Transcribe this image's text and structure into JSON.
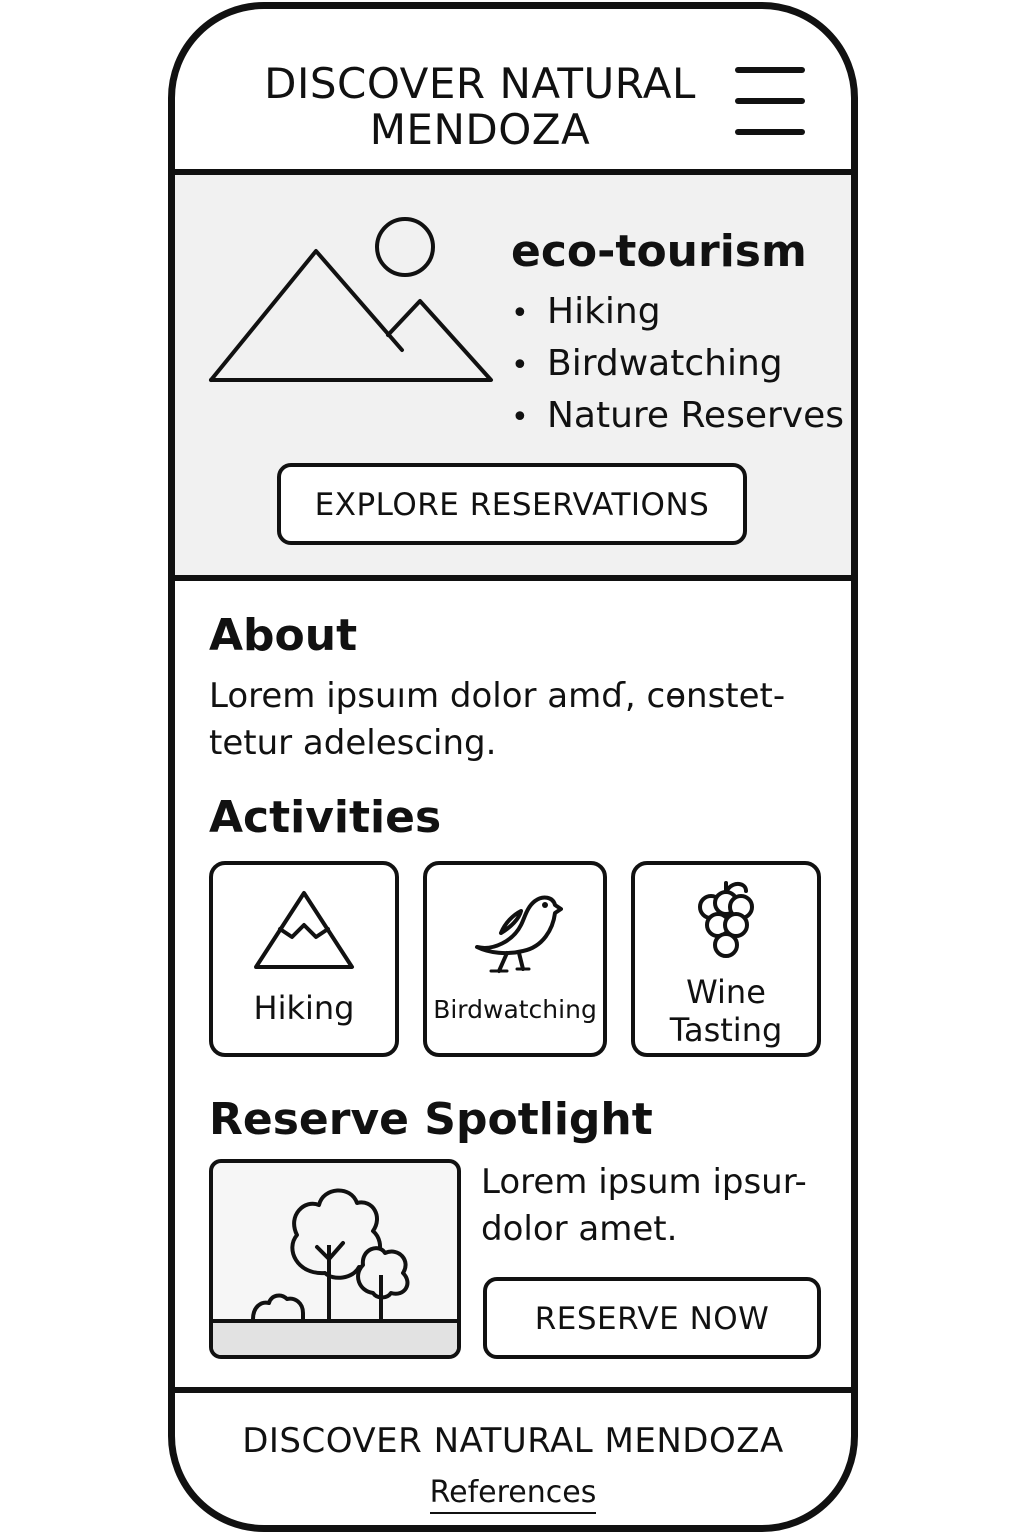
{
  "header": {
    "title": "DISCOVER NATURAL MENDOZA",
    "menu_icon": "hamburger-menu-icon"
  },
  "hero": {
    "illustration_icon": "mountain-sun-icon",
    "heading": "eco-tourism",
    "items": [
      {
        "bullet": "•",
        "label": "Hiking"
      },
      {
        "bullet": "•",
        "label": "Birdwatching"
      },
      {
        "bullet": "•",
        "label": "Nature Reserves"
      }
    ],
    "cta_label": "EXPLORE RESERVATIONS"
  },
  "about": {
    "title": "About",
    "text": "Lorem ipsuım dolor amɗ, cɵnstet-tetur adelescing."
  },
  "activities": {
    "title": "Activities",
    "cards": [
      {
        "icon": "mountain-icon",
        "label": "Hiking"
      },
      {
        "icon": "bird-icon",
        "label": "Birdwatching"
      },
      {
        "icon": "grapes-icon",
        "label": "Wine Tasting"
      }
    ]
  },
  "spotlight": {
    "title": "Reserve Spotlight",
    "image_icon": "trees-icon",
    "text": "Lorem ipsum ipsur-dolor amet.",
    "cta_label": "RESERVE NOW"
  },
  "footer": {
    "title": "DISCOVER NATURAL MENDOZA",
    "link_label": "References"
  },
  "colors": {
    "ink": "#111111",
    "hero_background": "#f1f1f1",
    "page_background": "#ffffff"
  }
}
